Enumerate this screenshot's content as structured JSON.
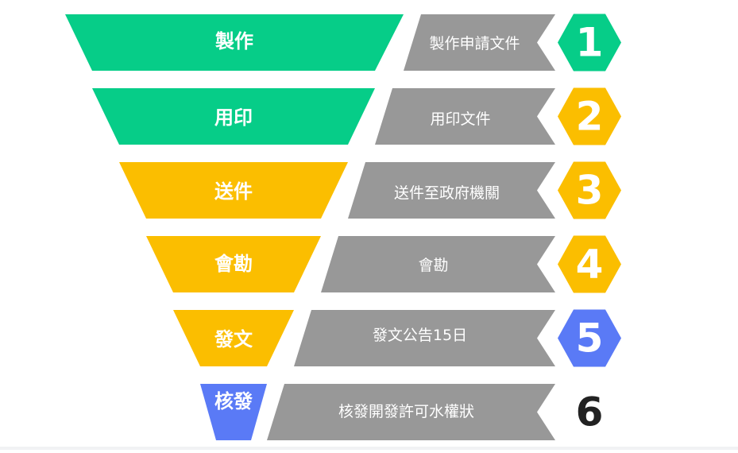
{
  "colors": {
    "green": "#06cd88",
    "yellow": "#fbbe00",
    "blue": "#5a7af6",
    "gray": "#989898",
    "text_light": "#ffffff",
    "text_dark": "#222222"
  },
  "steps": [
    {
      "number": "1",
      "title": "製作",
      "description": "製作申請文件",
      "funnel_color": "green",
      "badge_color": "green"
    },
    {
      "number": "2",
      "title": "用印",
      "description": "用印文件",
      "funnel_color": "green",
      "badge_color": "yellow"
    },
    {
      "number": "3",
      "title": "送件",
      "description": "送件至政府機關",
      "funnel_color": "yellow",
      "badge_color": "yellow"
    },
    {
      "number": "4",
      "title": "會勘",
      "description": "會勘",
      "funnel_color": "yellow",
      "badge_color": "yellow"
    },
    {
      "number": "5",
      "title": "發文",
      "description": "發文公告15日",
      "funnel_color": "yellow",
      "badge_color": "blue"
    },
    {
      "number": "6",
      "title": "核發",
      "description": "核發開發許可水權狀",
      "funnel_color": "blue",
      "badge_color": "none"
    }
  ]
}
